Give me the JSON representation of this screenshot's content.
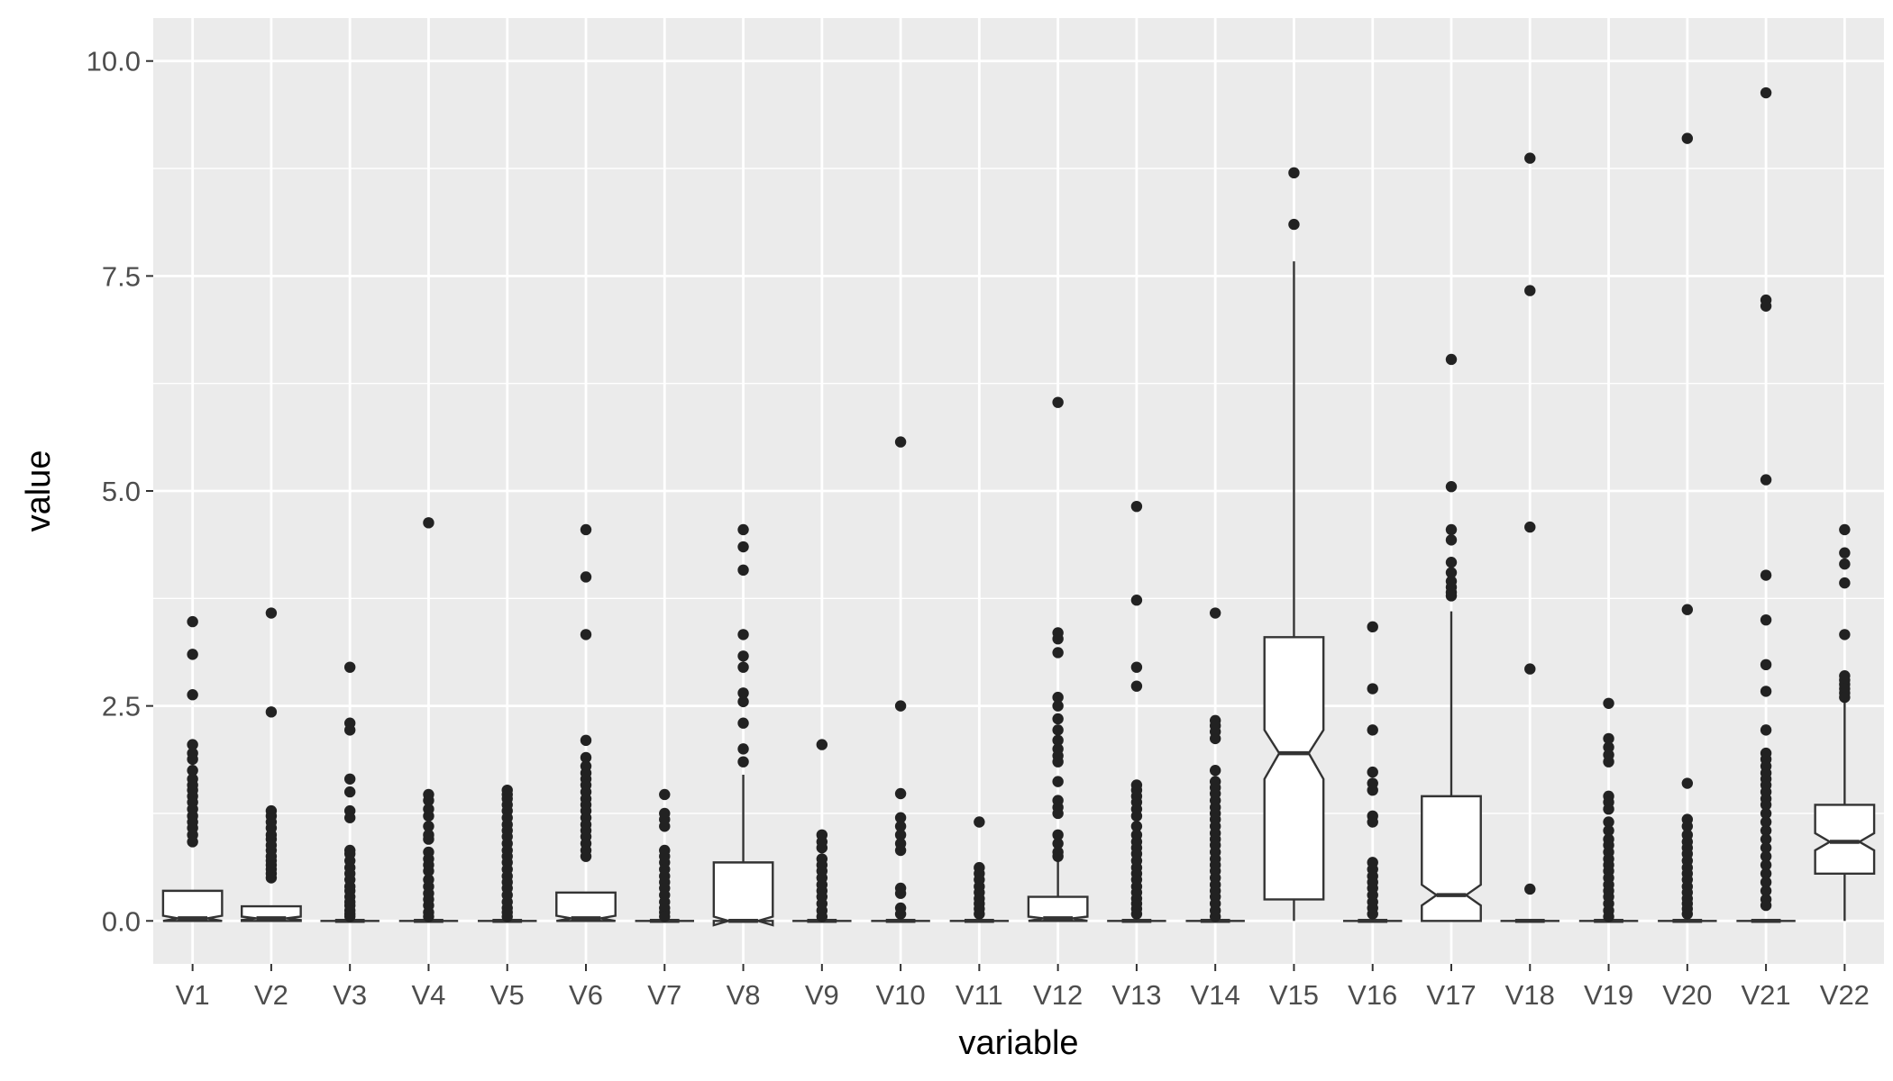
{
  "chart_data": {
    "type": "boxplot",
    "notched": true,
    "xlabel": "variable",
    "ylabel": "value",
    "ylim": [
      -0.5,
      10.5
    ],
    "yticks": [
      0,
      2.5,
      5,
      7.5,
      10
    ],
    "ytick_labels": [
      "0.0",
      "2.5",
      "5.0",
      "7.5",
      "10.0"
    ],
    "grid": true,
    "colors": {
      "panel": "#ebebeb",
      "grid": "#ffffff",
      "box_fill": "#ffffff",
      "stroke": "#333333",
      "outlier": "#222222",
      "tick_text": "#4d4d4d"
    },
    "categories": [
      "V1",
      "V2",
      "V3",
      "V4",
      "V5",
      "V6",
      "V7",
      "V8",
      "V9",
      "V10",
      "V11",
      "V12",
      "V13",
      "V14",
      "V15",
      "V16",
      "V17",
      "V18",
      "V19",
      "V20",
      "V21",
      "V22"
    ],
    "boxes": [
      {
        "q1": 0,
        "median": 0.03,
        "q3": 0.35,
        "whisker_low": 0,
        "whisker_high": 0.35,
        "notch_low": 0,
        "notch_high": 0.06,
        "outliers": [
          3.48,
          3.1,
          2.63,
          2.05,
          1.95,
          1.88,
          1.75,
          1.65,
          1.58,
          1.52,
          1.45,
          1.38,
          1.3,
          1.22,
          1.15,
          1.08,
          1.0,
          0.92
        ]
      },
      {
        "q1": 0,
        "median": 0.03,
        "q3": 0.17,
        "whisker_low": 0,
        "whisker_high": 0.17,
        "notch_low": 0.01,
        "notch_high": 0.05,
        "outliers": [
          3.58,
          2.43,
          1.28,
          1.22,
          1.15,
          1.08,
          1.0,
          0.95,
          0.88,
          0.82,
          0.75,
          0.7,
          0.65,
          0.6,
          0.55,
          0.5
        ]
      },
      {
        "q1": 0,
        "median": 0,
        "q3": 0,
        "whisker_low": 0,
        "whisker_high": 0,
        "notch_low": 0,
        "notch_high": 0,
        "outliers": [
          2.95,
          2.3,
          2.22,
          1.65,
          1.5,
          1.28,
          1.2,
          0.82,
          0.78,
          0.7,
          0.62,
          0.55,
          0.48,
          0.4,
          0.35,
          0.28,
          0.22,
          0.18,
          0.12,
          0.08,
          0.05
        ]
      },
      {
        "q1": 0,
        "median": 0,
        "q3": 0,
        "whisker_low": 0,
        "whisker_high": 0,
        "notch_low": 0,
        "notch_high": 0,
        "outliers": [
          4.63,
          1.47,
          1.4,
          1.3,
          1.22,
          1.1,
          1.0,
          0.95,
          0.8,
          0.72,
          0.65,
          0.58,
          0.48,
          0.4,
          0.32,
          0.25,
          0.18,
          0.1,
          0.05
        ]
      },
      {
        "q1": 0,
        "median": 0,
        "q3": 0,
        "whisker_low": 0,
        "whisker_high": 0,
        "notch_low": 0,
        "notch_high": 0,
        "outliers": [
          1.52,
          1.47,
          1.42,
          1.35,
          1.28,
          1.2,
          1.12,
          1.05,
          0.98,
          0.9,
          0.82,
          0.75,
          0.68,
          0.6,
          0.52,
          0.45,
          0.38,
          0.3,
          0.22,
          0.15,
          0.1,
          0.05
        ]
      },
      {
        "q1": 0,
        "median": 0.03,
        "q3": 0.33,
        "whisker_low": 0,
        "whisker_high": 0.33,
        "notch_low": 0,
        "notch_high": 0.06,
        "outliers": [
          4.55,
          4.0,
          3.33,
          2.1,
          1.9,
          1.8,
          1.72,
          1.65,
          1.58,
          1.5,
          1.42,
          1.35,
          1.28,
          1.2,
          1.12,
          1.05,
          0.98,
          0.9,
          0.82,
          0.75
        ]
      },
      {
        "q1": 0,
        "median": 0,
        "q3": 0,
        "whisker_low": 0,
        "whisker_high": 0,
        "notch_low": 0,
        "notch_high": 0,
        "outliers": [
          1.47,
          1.25,
          1.18,
          1.1,
          0.82,
          0.75,
          0.68,
          0.6,
          0.52,
          0.45,
          0.38,
          0.3,
          0.22,
          0.15,
          0.1,
          0.05
        ]
      },
      {
        "q1": 0,
        "median": 0,
        "q3": 0.68,
        "whisker_low": 0,
        "whisker_high": 1.7,
        "notch_low": -0.05,
        "notch_high": 0.05,
        "outliers": [
          4.55,
          4.35,
          4.08,
          3.33,
          3.08,
          2.95,
          2.65,
          2.55,
          2.3,
          2.0,
          1.85
        ]
      },
      {
        "q1": 0,
        "median": 0,
        "q3": 0,
        "whisker_low": 0,
        "whisker_high": 0,
        "notch_low": 0,
        "notch_high": 0,
        "outliers": [
          2.05,
          1.0,
          0.92,
          0.85,
          0.72,
          0.65,
          0.58,
          0.5,
          0.42,
          0.35,
          0.28,
          0.2,
          0.12,
          0.05
        ]
      },
      {
        "q1": 0,
        "median": 0,
        "q3": 0,
        "whisker_low": 0,
        "whisker_high": 0,
        "notch_low": 0,
        "notch_high": 0,
        "outliers": [
          5.57,
          2.5,
          1.48,
          1.2,
          1.1,
          1.0,
          0.9,
          0.82,
          0.38,
          0.32,
          0.15,
          0.08
        ]
      },
      {
        "q1": 0,
        "median": 0,
        "q3": 0,
        "whisker_low": 0,
        "whisker_high": 0,
        "notch_low": 0,
        "notch_high": 0,
        "outliers": [
          1.15,
          0.62,
          0.55,
          0.48,
          0.4,
          0.33,
          0.26,
          0.2,
          0.14,
          0.08
        ]
      },
      {
        "q1": 0,
        "median": 0.03,
        "q3": 0.28,
        "whisker_low": 0,
        "whisker_high": 0.7,
        "notch_low": 0.0,
        "notch_high": 0.05,
        "outliers": [
          6.03,
          3.35,
          3.28,
          3.12,
          2.6,
          2.5,
          2.35,
          2.22,
          2.1,
          2.0,
          1.92,
          1.85,
          1.62,
          1.4,
          1.32,
          1.25,
          1.0,
          0.9,
          0.8,
          0.75
        ]
      },
      {
        "q1": 0,
        "median": 0,
        "q3": 0,
        "whisker_low": 0,
        "whisker_high": 0,
        "notch_low": 0,
        "notch_high": 0,
        "outliers": [
          4.82,
          3.73,
          2.95,
          2.73,
          1.58,
          1.52,
          1.45,
          1.38,
          1.3,
          1.22,
          1.1,
          1.0,
          0.92,
          0.85,
          0.78,
          0.7,
          0.62,
          0.55,
          0.48,
          0.4,
          0.33,
          0.26,
          0.2,
          0.14,
          0.08
        ]
      },
      {
        "q1": 0,
        "median": 0,
        "q3": 0,
        "whisker_low": 0,
        "whisker_high": 0,
        "notch_low": 0,
        "notch_high": 0,
        "outliers": [
          3.58,
          2.33,
          2.27,
          2.2,
          2.12,
          1.75,
          1.62,
          1.55,
          1.48,
          1.4,
          1.32,
          1.25,
          1.18,
          1.1,
          1.02,
          0.95,
          0.88,
          0.8,
          0.72,
          0.65,
          0.58,
          0.5,
          0.42,
          0.35,
          0.28,
          0.2,
          0.12,
          0.05
        ]
      },
      {
        "q1": 0.25,
        "median": 1.95,
        "q3": 3.3,
        "whisker_low": 0,
        "whisker_high": 7.67,
        "notch_low": 1.65,
        "notch_high": 2.22,
        "outliers": [
          8.7,
          8.1
        ]
      },
      {
        "q1": 0,
        "median": 0,
        "q3": 0,
        "whisker_low": 0,
        "whisker_high": 0,
        "notch_low": 0,
        "notch_high": 0,
        "outliers": [
          3.42,
          2.7,
          2.22,
          1.73,
          1.6,
          1.52,
          1.22,
          1.15,
          0.68,
          0.6,
          0.52,
          0.45,
          0.38,
          0.3,
          0.22,
          0.15,
          0.08
        ]
      },
      {
        "q1": 0,
        "median": 0.3,
        "q3": 1.45,
        "whisker_low": 0,
        "whisker_high": 3.6,
        "notch_low": 0.18,
        "notch_high": 0.42,
        "outliers": [
          6.53,
          5.05,
          4.55,
          4.43,
          4.17,
          4.05,
          3.95,
          3.88,
          3.82,
          3.78
        ]
      },
      {
        "q1": 0,
        "median": 0,
        "q3": 0,
        "whisker_low": 0,
        "whisker_high": 0,
        "notch_low": 0,
        "notch_high": 0,
        "outliers": [
          8.87,
          7.33,
          4.58,
          2.93,
          0.37
        ]
      },
      {
        "q1": 0,
        "median": 0,
        "q3": 0,
        "whisker_low": 0,
        "whisker_high": 0,
        "notch_low": 0,
        "notch_high": 0,
        "outliers": [
          2.53,
          2.12,
          2.02,
          1.93,
          1.85,
          1.45,
          1.38,
          1.3,
          1.15,
          1.05,
          0.95,
          0.88,
          0.8,
          0.72,
          0.65,
          0.58,
          0.5,
          0.42,
          0.35,
          0.28,
          0.2,
          0.12,
          0.05
        ]
      },
      {
        "q1": 0,
        "median": 0,
        "q3": 0,
        "whisker_low": 0,
        "whisker_high": 0,
        "notch_low": 0,
        "notch_high": 0,
        "outliers": [
          9.1,
          3.62,
          1.6,
          1.18,
          1.1,
          1.0,
          0.92,
          0.85,
          0.78,
          0.7,
          0.62,
          0.55,
          0.48,
          0.4,
          0.33,
          0.26,
          0.2,
          0.14,
          0.08
        ]
      },
      {
        "q1": 0,
        "median": 0,
        "q3": 0,
        "whisker_low": 0,
        "whisker_high": 0,
        "notch_low": 0,
        "notch_high": 0,
        "outliers": [
          9.63,
          7.22,
          7.15,
          5.13,
          4.02,
          3.5,
          2.98,
          2.67,
          2.22,
          1.95,
          1.88,
          1.8,
          1.72,
          1.65,
          1.58,
          1.5,
          1.42,
          1.35,
          1.25,
          1.15,
          1.05,
          0.95,
          0.85,
          0.75,
          0.65,
          0.55,
          0.45,
          0.35,
          0.25,
          0.18
        ]
      },
      {
        "q1": 0.55,
        "median": 0.92,
        "q3": 1.35,
        "whisker_low": 0,
        "whisker_high": 2.55,
        "notch_low": 0.82,
        "notch_high": 1.02,
        "outliers": [
          4.55,
          4.28,
          4.15,
          3.93,
          3.33,
          2.85,
          2.8,
          2.75,
          2.7,
          2.65,
          2.6
        ]
      }
    ]
  }
}
